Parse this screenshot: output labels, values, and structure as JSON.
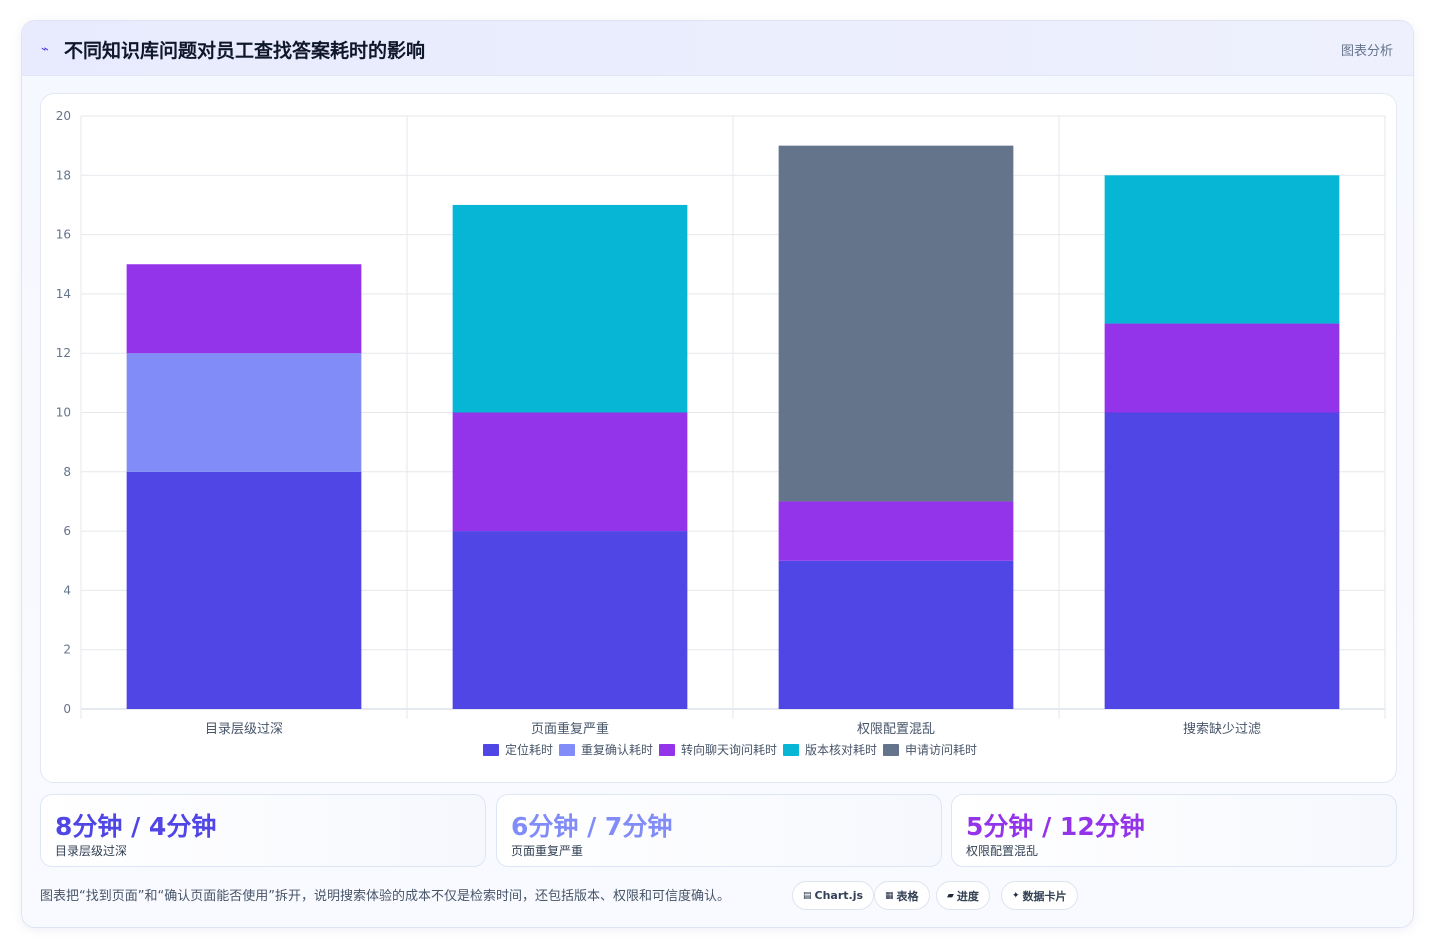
{
  "header": {
    "icon": "chart-line-icon",
    "title": "不同知识库问题对员工查找答案耗时的影响",
    "tag": "图表分析"
  },
  "chart_data": {
    "type": "bar",
    "stacked": true,
    "categories": [
      "目录层级过深",
      "页面重复严重",
      "权限配置混乱",
      "搜索缺少过滤"
    ],
    "series": [
      {
        "name": "定位耗时",
        "color": "#4f46e5",
        "values": [
          8,
          6,
          5,
          10
        ]
      },
      {
        "name": "重复确认耗时",
        "color": "#818cf8",
        "values": [
          4,
          0,
          0,
          0
        ]
      },
      {
        "name": "转向聊天询问耗时",
        "color": "#9333ea",
        "values": [
          3,
          4,
          2,
          3
        ]
      },
      {
        "name": "版本核对耗时",
        "color": "#06b6d4",
        "values": [
          0,
          7,
          0,
          5
        ]
      },
      {
        "name": "申请访问耗时",
        "color": "#64748b",
        "values": [
          0,
          0,
          12,
          0
        ]
      }
    ],
    "ylim": [
      0,
      20
    ],
    "yticks": [
      0,
      2,
      4,
      6,
      8,
      10,
      12,
      14,
      16,
      18,
      20
    ],
    "grid": true,
    "legend_position": "bottom"
  },
  "stats": [
    {
      "value": "8分钟 / 4分钟",
      "label": "目录层级过深",
      "color": "#4f46e5"
    },
    {
      "value": "6分钟 / 7分钟",
      "label": "页面重复严重",
      "color": "#818cf8"
    },
    {
      "value": "5分钟 / 12分钟",
      "label": "权限配置混乱",
      "color": "#9333ea"
    }
  ],
  "note": "图表把“找到页面”和“确认页面能否使用”拆开，说明搜索体验的成本不仅是检索时间，还包括版本、权限和可信度确认。",
  "pills": [
    {
      "icon": "▤",
      "label": "Chart.js"
    },
    {
      "icon": "▦",
      "label": "表格"
    },
    {
      "icon": "▰",
      "label": "进度"
    },
    {
      "icon": "✦",
      "label": "数据卡片"
    }
  ]
}
